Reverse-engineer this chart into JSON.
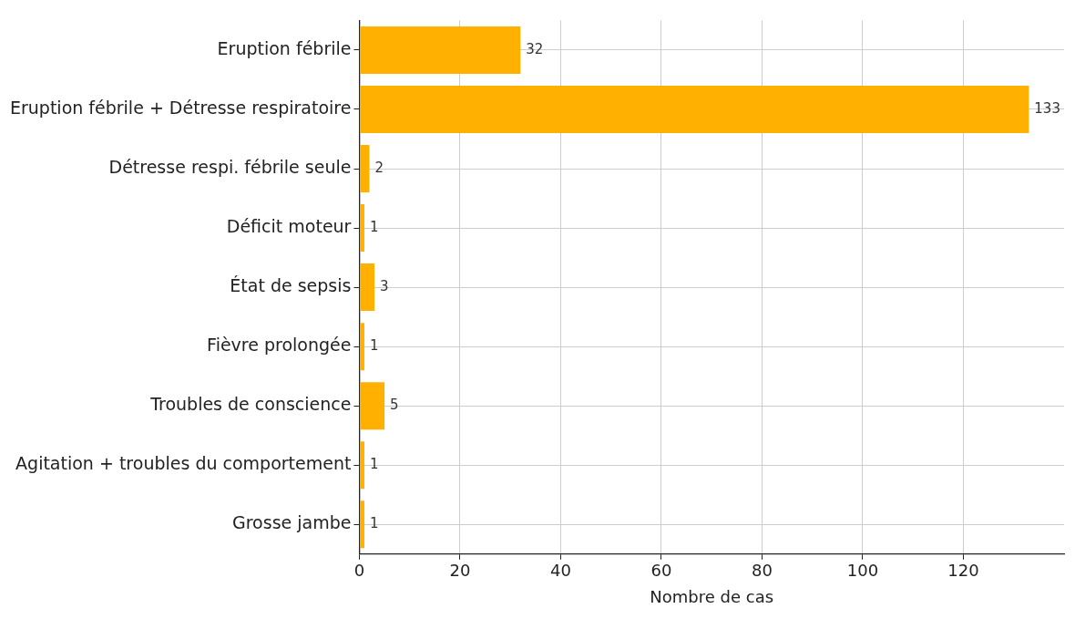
{
  "chart_data": {
    "type": "bar",
    "orientation": "horizontal",
    "xlabel": "Nombre de cas",
    "categories": [
      "Eruption fébrile",
      "Eruption fébrile + Détresse respiratoire",
      "Détresse respi. fébrile seule",
      "Déficit moteur",
      "État de sepsis",
      "Fièvre prolongée",
      "Troubles de conscience",
      "Agitation + troubles du comportement",
      "Grosse jambe"
    ],
    "values": [
      32,
      133,
      2,
      1,
      3,
      1,
      5,
      1,
      1
    ],
    "color": "#ffb000",
    "xlim": [
      0,
      140
    ],
    "xticks": [
      0,
      20,
      40,
      60,
      80,
      100,
      120
    ],
    "grid": true,
    "data_labels": true,
    "legend": false
  }
}
